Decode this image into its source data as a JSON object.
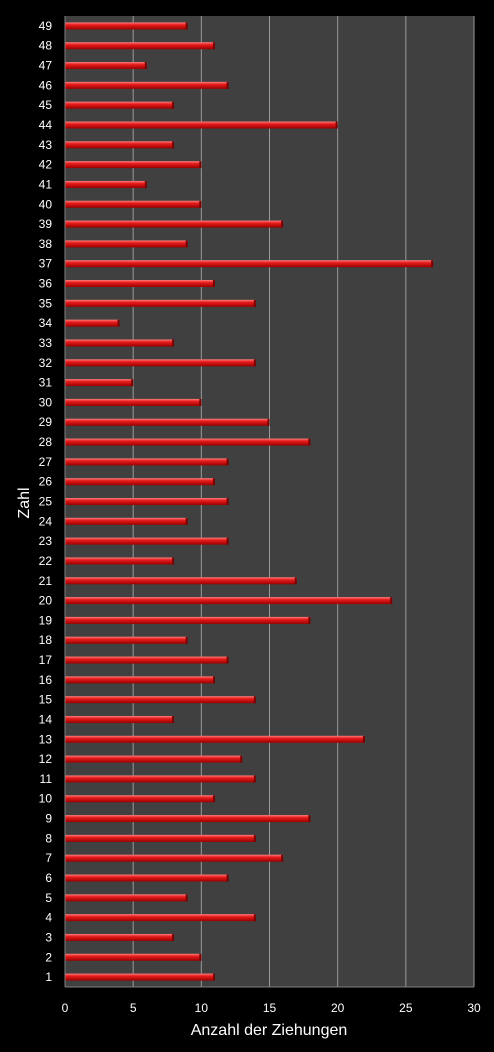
{
  "chart_data": {
    "type": "bar",
    "orientation": "horizontal",
    "xlabel": "Anzahl der Ziehungen",
    "ylabel": "Zahl",
    "xlim": [
      0,
      30
    ],
    "x_ticks": [
      0,
      5,
      10,
      15,
      20,
      25,
      30
    ],
    "grid": "vertical",
    "colors": {
      "bar": "#e01818",
      "bar_highlight": "#ff7070",
      "bar_shadow": "#8a0000",
      "plot_bg": "#404040",
      "page_bg": "#000000",
      "text": "#ffffff"
    },
    "categories": [
      "1",
      "2",
      "3",
      "4",
      "5",
      "6",
      "7",
      "8",
      "9",
      "10",
      "11",
      "12",
      "13",
      "14",
      "15",
      "16",
      "17",
      "18",
      "19",
      "20",
      "21",
      "22",
      "23",
      "24",
      "25",
      "26",
      "27",
      "28",
      "29",
      "30",
      "31",
      "32",
      "33",
      "34",
      "35",
      "36",
      "37",
      "38",
      "39",
      "40",
      "41",
      "42",
      "43",
      "44",
      "45",
      "46",
      "47",
      "48",
      "49"
    ],
    "values": [
      11,
      10,
      8,
      14,
      9,
      12,
      16,
      14,
      18,
      11,
      14,
      13,
      22,
      8,
      14,
      11,
      12,
      9,
      18,
      24,
      17,
      8,
      12,
      9,
      12,
      11,
      12,
      18,
      15,
      10,
      5,
      14,
      8,
      4,
      14,
      11,
      27,
      9,
      16,
      10,
      6,
      10,
      8,
      20,
      8,
      12,
      6,
      11,
      9
    ]
  }
}
